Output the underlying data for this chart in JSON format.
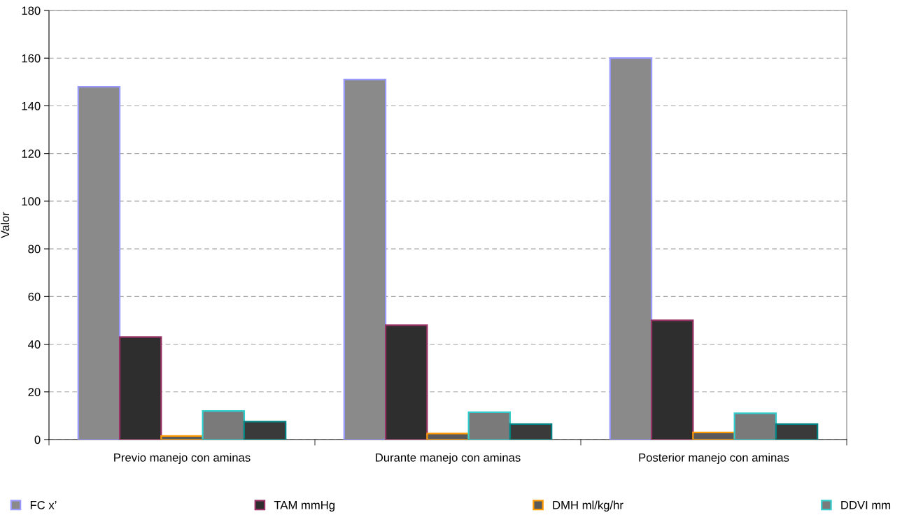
{
  "chart_data": {
    "type": "bar",
    "ylabel": "Valor",
    "categories": [
      "Previo manejo con aminas",
      "Durante manejo con aminas",
      "Posterior manejo con aminas"
    ],
    "series": [
      {
        "name": "FC x’",
        "color": "#9999ff",
        "values": [
          148,
          151,
          160
        ]
      },
      {
        "name": "TAM mmHg",
        "color": "#993366",
        "values": [
          43,
          48,
          50
        ]
      },
      {
        "name": "DMH ml/kg/hr",
        "color": "#ff9900",
        "values": [
          1.5,
          2.5,
          3
        ]
      },
      {
        "name": "DDVI mm",
        "color": "#33cccc",
        "values": [
          12,
          11.5,
          11
        ]
      },
      {
        "color": "#008080",
        "values": [
          7.5,
          6.5,
          6.5
        ]
      }
    ],
    "ylim": [
      0,
      180
    ],
    "yticks": [
      0,
      20,
      40,
      60,
      80,
      100,
      120,
      140,
      160,
      180
    ],
    "grid": "y",
    "legend": "bottom"
  }
}
